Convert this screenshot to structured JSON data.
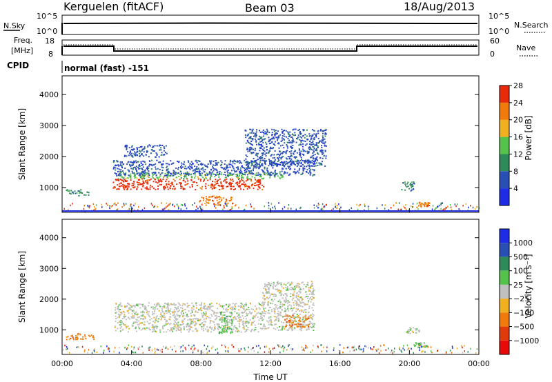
{
  "header": {
    "station": "Kerguelen (fitACF)",
    "beam": "Beam 03",
    "date": "18/Aug/2013"
  },
  "noise_panel": {
    "left_label": "N.Sky",
    "left_ticks": [
      "10^5",
      "10^0"
    ],
    "right_label": "N.Search",
    "right_ticks": [
      "10^5",
      "10^0"
    ]
  },
  "freq_panel": {
    "left_label_1": "Freq.",
    "left_label_2": "[MHz]",
    "left_ticks": [
      "18",
      "8"
    ],
    "right_label": "Nave",
    "right_ticks": [
      "60",
      "0"
    ]
  },
  "cpid": {
    "label": "CPID",
    "value": "normal (fast) -151"
  },
  "colors": {
    "power_scale": [
      "#1e2ce6",
      "#2a4fb4",
      "#2f8a5a",
      "#55c24b",
      "#f0b020",
      "#f07a0a",
      "#e62a0a"
    ],
    "velocity_scale": [
      "#1e2ce6",
      "#2a4fb4",
      "#2f8a5a",
      "#55c24b",
      "#c0c0c0",
      "#f0b020",
      "#f07a0a",
      "#e03a0a",
      "#e60a0a"
    ]
  },
  "chart_data": [
    {
      "type": "heatmap",
      "name": "power",
      "x": [
        "00:00",
        "04:00",
        "08:00",
        "12:00",
        "16:00",
        "20:00",
        "00:00"
      ],
      "ylabel": "Slant Range [km]",
      "yticks": [
        1000,
        2000,
        3000,
        4000
      ],
      "ylim": [
        200,
        4600
      ],
      "colorbar": {
        "label": "Power [dB]",
        "ticks": [
          "4",
          "8",
          "12",
          "16",
          "20",
          "24",
          "28"
        ]
      },
      "blobs": [
        {
          "t0": 2.9,
          "t1": 11.6,
          "r0": 950,
          "r1": 1300,
          "level": 6
        },
        {
          "t0": 3.2,
          "t1": 12.8,
          "r0": 1300,
          "r1": 1500,
          "level": 3
        },
        {
          "t0": 2.9,
          "t1": 14.5,
          "r0": 1400,
          "r1": 1900,
          "level": 1
        },
        {
          "t0": 7.8,
          "t1": 9.8,
          "r0": 450,
          "r1": 750,
          "level": 5
        },
        {
          "t0": 3.5,
          "t1": 6.0,
          "r0": 2000,
          "r1": 2400,
          "level": 1
        },
        {
          "t0": 10.5,
          "t1": 15.2,
          "r0": 1700,
          "r1": 2900,
          "level": 1
        },
        {
          "t0": 0.2,
          "t1": 1.5,
          "r0": 750,
          "r1": 950,
          "level": 2
        },
        {
          "t0": 19.5,
          "t1": 20.3,
          "r0": 900,
          "r1": 1200,
          "level": 2
        },
        {
          "t0": 20.5,
          "t1": 21.1,
          "r0": 400,
          "r1": 550,
          "level": 5
        }
      ]
    },
    {
      "type": "heatmap",
      "name": "velocity",
      "x": [
        "00:00",
        "04:00",
        "08:00",
        "12:00",
        "16:00",
        "20:00",
        "00:00"
      ],
      "xlabel": "Time UT",
      "ylabel": "Slant Range [km]",
      "yticks": [
        1000,
        2000,
        3000,
        4000
      ],
      "ylim": [
        200,
        4600
      ],
      "colorbar": {
        "label": "Velocity [m s⁻¹]",
        "ticks": [
          "1000",
          "500",
          "100",
          "25",
          "−25",
          "−100",
          "−500",
          "−1000"
        ]
      },
      "blobs": [
        {
          "t0": 3.0,
          "t1": 11.5,
          "r0": 950,
          "r1": 1900,
          "level": 4
        },
        {
          "t0": 9.0,
          "t1": 9.8,
          "r0": 900,
          "r1": 1600,
          "level": 3
        },
        {
          "t0": 11.5,
          "t1": 14.5,
          "r0": 1000,
          "r1": 2600,
          "level": 4
        },
        {
          "t0": 12.8,
          "t1": 14.2,
          "r0": 1100,
          "r1": 1500,
          "level": 6
        },
        {
          "t0": 0.2,
          "t1": 1.8,
          "r0": 700,
          "r1": 900,
          "level": 6
        },
        {
          "t0": 19.8,
          "t1": 20.6,
          "r0": 900,
          "r1": 1100,
          "level": 4
        },
        {
          "t0": 20.2,
          "t1": 21.0,
          "r0": 450,
          "r1": 600,
          "level": 3
        }
      ]
    }
  ]
}
